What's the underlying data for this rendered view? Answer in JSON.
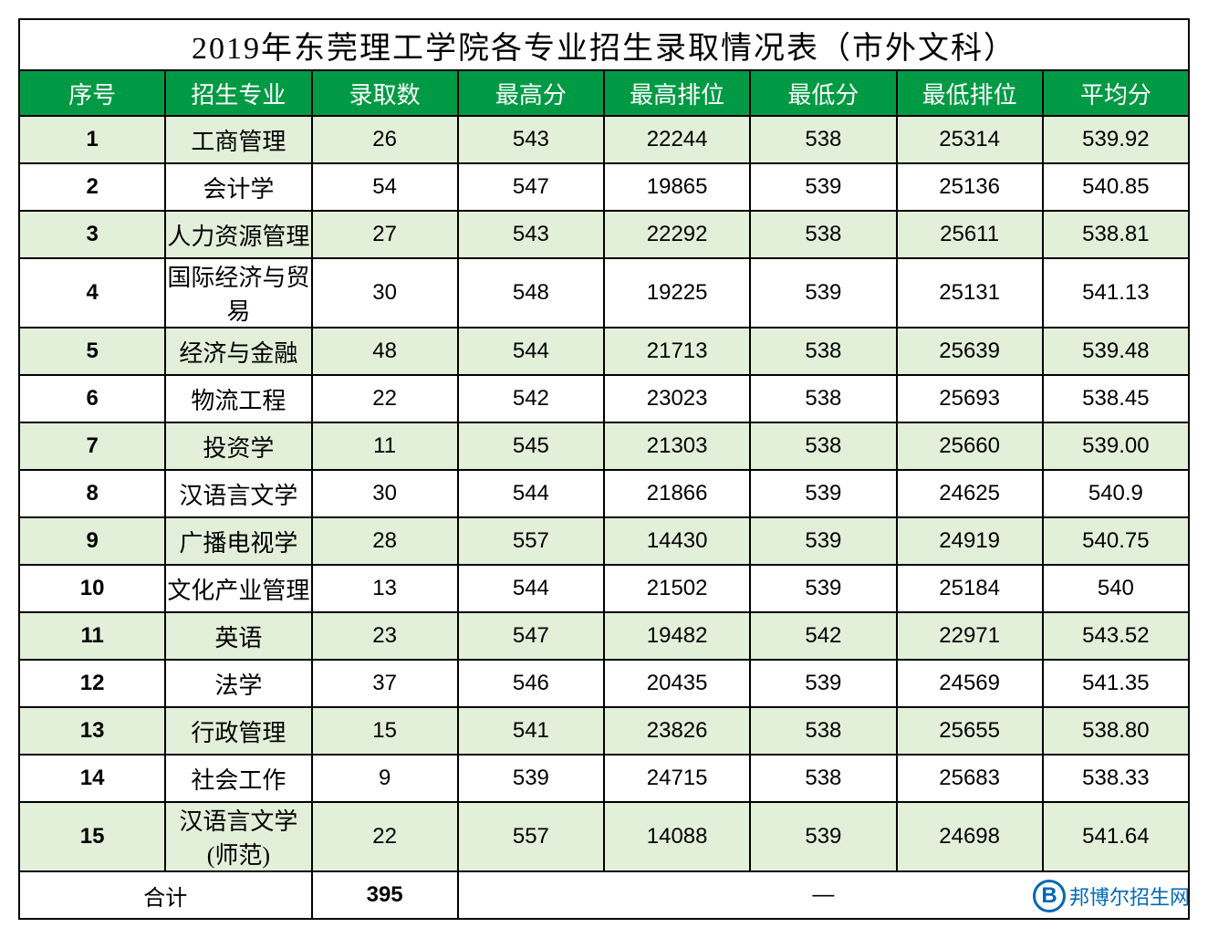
{
  "table": {
    "title": "2019年东莞理工学院各专业招生录取情况表（市外文科）",
    "headers": {
      "seq": "序号",
      "major": "招生专业",
      "count": "录取数",
      "max_score": "最高分",
      "max_rank": "最高排位",
      "min_score": "最低分",
      "min_rank": "最低排位",
      "avg_score": "平均分"
    },
    "rows": [
      {
        "seq": "1",
        "major": "工商管理",
        "count": "26",
        "max_score": "543",
        "max_rank": "22244",
        "min_score": "538",
        "min_rank": "25314",
        "avg_score": "539.92"
      },
      {
        "seq": "2",
        "major": "会计学",
        "count": "54",
        "max_score": "547",
        "max_rank": "19865",
        "min_score": "539",
        "min_rank": "25136",
        "avg_score": "540.85"
      },
      {
        "seq": "3",
        "major": "人力资源管理",
        "count": "27",
        "max_score": "543",
        "max_rank": "22292",
        "min_score": "538",
        "min_rank": "25611",
        "avg_score": "538.81"
      },
      {
        "seq": "4",
        "major": "国际经济与贸易",
        "count": "30",
        "max_score": "548",
        "max_rank": "19225",
        "min_score": "539",
        "min_rank": "25131",
        "avg_score": "541.13"
      },
      {
        "seq": "5",
        "major": "经济与金融",
        "count": "48",
        "max_score": "544",
        "max_rank": "21713",
        "min_score": "538",
        "min_rank": "25639",
        "avg_score": "539.48"
      },
      {
        "seq": "6",
        "major": "物流工程",
        "count": "22",
        "max_score": "542",
        "max_rank": "23023",
        "min_score": "538",
        "min_rank": "25693",
        "avg_score": "538.45"
      },
      {
        "seq": "7",
        "major": "投资学",
        "count": "11",
        "max_score": "545",
        "max_rank": "21303",
        "min_score": "538",
        "min_rank": "25660",
        "avg_score": "539.00"
      },
      {
        "seq": "8",
        "major": "汉语言文学",
        "count": "30",
        "max_score": "544",
        "max_rank": "21866",
        "min_score": "539",
        "min_rank": "24625",
        "avg_score": "540.9"
      },
      {
        "seq": "9",
        "major": "广播电视学",
        "count": "28",
        "max_score": "557",
        "max_rank": "14430",
        "min_score": "539",
        "min_rank": "24919",
        "avg_score": "540.75"
      },
      {
        "seq": "10",
        "major": "文化产业管理",
        "count": "13",
        "max_score": "544",
        "max_rank": "21502",
        "min_score": "539",
        "min_rank": "25184",
        "avg_score": "540"
      },
      {
        "seq": "11",
        "major": "英语",
        "count": "23",
        "max_score": "547",
        "max_rank": "19482",
        "min_score": "542",
        "min_rank": "22971",
        "avg_score": "543.52"
      },
      {
        "seq": "12",
        "major": "法学",
        "count": "37",
        "max_score": "546",
        "max_rank": "20435",
        "min_score": "539",
        "min_rank": "24569",
        "avg_score": "541.35"
      },
      {
        "seq": "13",
        "major": "行政管理",
        "count": "15",
        "max_score": "541",
        "max_rank": "23826",
        "min_score": "538",
        "min_rank": "25655",
        "avg_score": "538.80"
      },
      {
        "seq": "14",
        "major": "社会工作",
        "count": "9",
        "max_score": "539",
        "max_rank": "24715",
        "min_score": "538",
        "min_rank": "25683",
        "avg_score": "538.33"
      },
      {
        "seq": "15",
        "major": "汉语言文学(师范)",
        "count": "22",
        "max_score": "557",
        "max_rank": "14088",
        "min_score": "539",
        "min_rank": "24698",
        "avg_score": "541.64"
      }
    ],
    "total": {
      "label": "合计",
      "count": "395",
      "dash": "—"
    },
    "colors": {
      "header_bg": "#009a44",
      "header_text": "#ffffff",
      "row_odd_bg": "#e2efd9",
      "row_even_bg": "#ffffff",
      "border": "#000000",
      "watermark": "#0068b7"
    },
    "column_widths": {
      "seq": 78,
      "major": 320,
      "count": 130,
      "max_score": 130,
      "max_rank": 165,
      "min_score": 130,
      "min_rank": 165,
      "avg_score": 130
    },
    "font_sizes": {
      "title": 34,
      "header": 26,
      "data": 24,
      "major_cell": 26
    }
  },
  "watermark": {
    "logo_letter": "B",
    "text": "邦博尔招生网"
  }
}
